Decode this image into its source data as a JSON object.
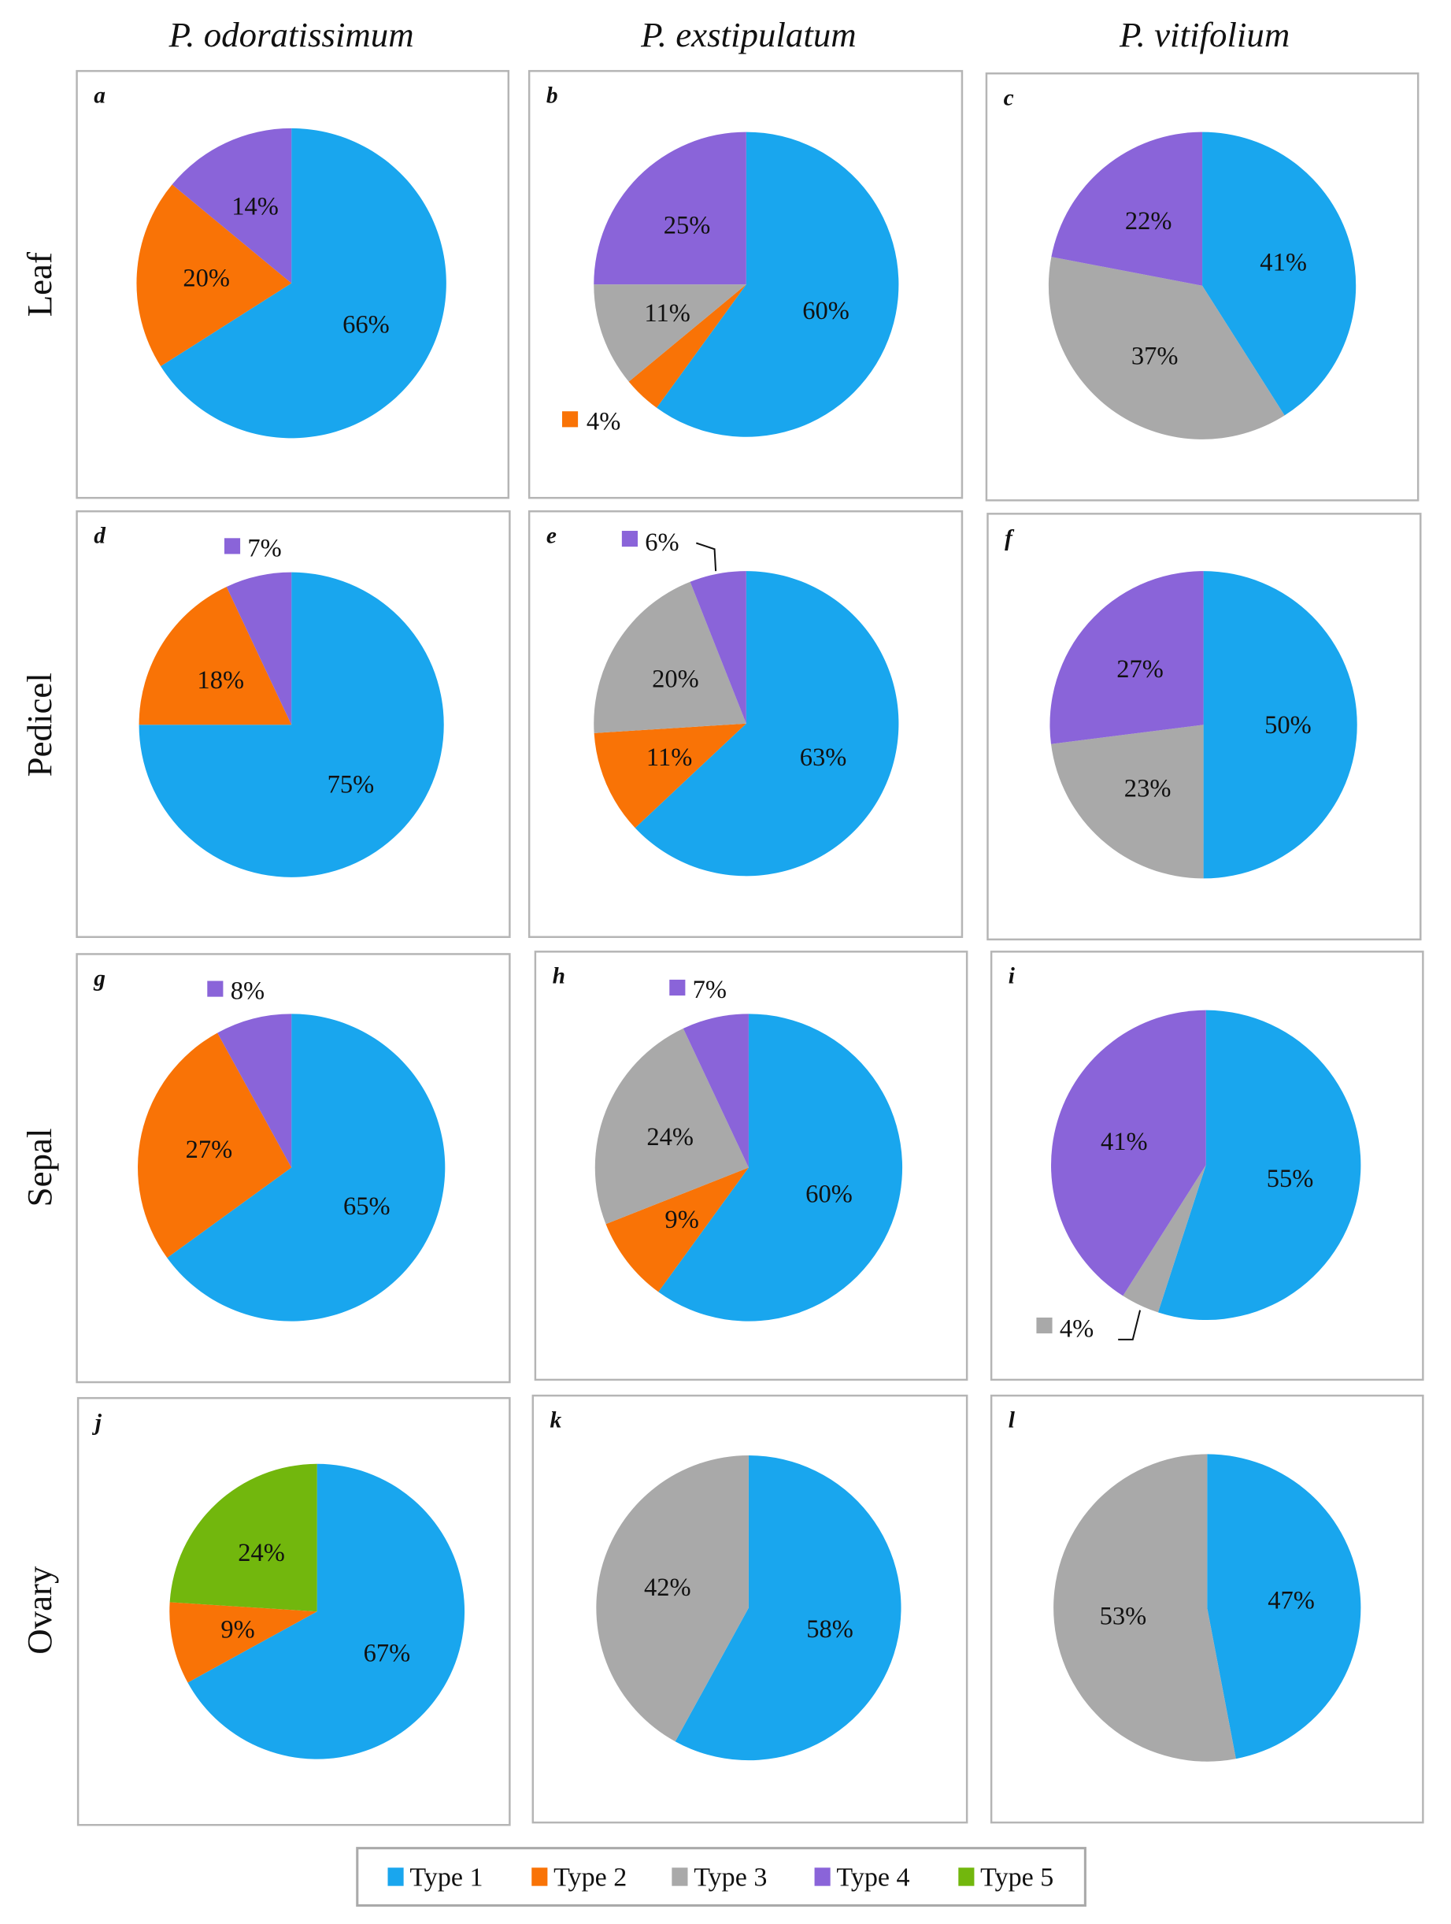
{
  "colors": {
    "Type 1": "#19a6ee",
    "Type 2": "#f97306",
    "Type 3": "#a9a9a9",
    "Type 4": "#8a64d9",
    "Type 5": "#72b70d"
  },
  "column_titles": [
    "P. odoratissimum",
    "P. exstipulatum",
    "P. vitifolium"
  ],
  "row_labels": [
    "Leaf",
    "Pedicel",
    "Sepal",
    "Ovary"
  ],
  "legend": {
    "position": "bottom",
    "entries": [
      "Type 1",
      "Type 2",
      "Type 3",
      "Type 4",
      "Type 5"
    ]
  },
  "chart_data": [
    {
      "type": "pie",
      "panel": "a",
      "species": "P. odoratissimum",
      "organ": "Leaf",
      "slices": [
        {
          "category": "Type 1",
          "value": 66,
          "label": "66%"
        },
        {
          "category": "Type 2",
          "value": 20,
          "label": "20%"
        },
        {
          "category": "Type 4",
          "value": 14,
          "label": "14%"
        }
      ]
    },
    {
      "type": "pie",
      "panel": "b",
      "species": "P. exstipulatum",
      "organ": "Leaf",
      "slices": [
        {
          "category": "Type 1",
          "value": 60,
          "label": "60%"
        },
        {
          "category": "Type 2",
          "value": 4,
          "label": "4%"
        },
        {
          "category": "Type 3",
          "value": 11,
          "label": "11%"
        },
        {
          "category": "Type 4",
          "value": 25,
          "label": "25%"
        }
      ]
    },
    {
      "type": "pie",
      "panel": "c",
      "species": "P. vitifolium",
      "organ": "Leaf",
      "slices": [
        {
          "category": "Type 1",
          "value": 41,
          "label": "41%"
        },
        {
          "category": "Type 3",
          "value": 37,
          "label": "37%"
        },
        {
          "category": "Type 4",
          "value": 22,
          "label": "22%"
        }
      ]
    },
    {
      "type": "pie",
      "panel": "d",
      "species": "P. odoratissimum",
      "organ": "Pedicel",
      "slices": [
        {
          "category": "Type 1",
          "value": 75,
          "label": "75%"
        },
        {
          "category": "Type 2",
          "value": 18,
          "label": "18%"
        },
        {
          "category": "Type 4",
          "value": 7,
          "label": "7%"
        }
      ]
    },
    {
      "type": "pie",
      "panel": "e",
      "species": "P. exstipulatum",
      "organ": "Pedicel",
      "slices": [
        {
          "category": "Type 1",
          "value": 63,
          "label": "63%"
        },
        {
          "category": "Type 2",
          "value": 11,
          "label": "11%"
        },
        {
          "category": "Type 3",
          "value": 20,
          "label": "20%"
        },
        {
          "category": "Type 4",
          "value": 6,
          "label": "6%"
        }
      ]
    },
    {
      "type": "pie",
      "panel": "f",
      "species": "P. vitifolium",
      "organ": "Pedicel",
      "slices": [
        {
          "category": "Type 1",
          "value": 50,
          "label": "50%"
        },
        {
          "category": "Type 3",
          "value": 23,
          "label": "23%"
        },
        {
          "category": "Type 4",
          "value": 27,
          "label": "27%"
        }
      ]
    },
    {
      "type": "pie",
      "panel": "g",
      "species": "P. odoratissimum",
      "organ": "Sepal",
      "slices": [
        {
          "category": "Type 1",
          "value": 65,
          "label": "65%"
        },
        {
          "category": "Type 2",
          "value": 27,
          "label": "27%"
        },
        {
          "category": "Type 4",
          "value": 8,
          "label": "8%"
        }
      ]
    },
    {
      "type": "pie",
      "panel": "h",
      "species": "P. exstipulatum",
      "organ": "Sepal",
      "slices": [
        {
          "category": "Type 1",
          "value": 60,
          "label": "60%"
        },
        {
          "category": "Type 2",
          "value": 9,
          "label": "9%"
        },
        {
          "category": "Type 3",
          "value": 24,
          "label": "24%"
        },
        {
          "category": "Type 4",
          "value": 7,
          "label": "7%"
        }
      ]
    },
    {
      "type": "pie",
      "panel": "i",
      "species": "P. vitifolium",
      "organ": "Sepal",
      "slices": [
        {
          "category": "Type 1",
          "value": 55,
          "label": "55%"
        },
        {
          "category": "Type 3",
          "value": 4,
          "label": "4%"
        },
        {
          "category": "Type 4",
          "value": 41,
          "label": "41%"
        }
      ]
    },
    {
      "type": "pie",
      "panel": "j",
      "species": "P. odoratissimum",
      "organ": "Ovary",
      "slices": [
        {
          "category": "Type 1",
          "value": 67,
          "label": "67%"
        },
        {
          "category": "Type 2",
          "value": 9,
          "label": "9%"
        },
        {
          "category": "Type 5",
          "value": 24,
          "label": "24%"
        }
      ]
    },
    {
      "type": "pie",
      "panel": "k",
      "species": "P. exstipulatum",
      "organ": "Ovary",
      "slices": [
        {
          "category": "Type 1",
          "value": 58,
          "label": "58%"
        },
        {
          "category": "Type 3",
          "value": 42,
          "label": "42%"
        }
      ]
    },
    {
      "type": "pie",
      "panel": "l",
      "species": "P. vitifolium",
      "organ": "Ovary",
      "slices": [
        {
          "category": "Type 1",
          "value": 47,
          "label": "47%"
        },
        {
          "category": "Type 3",
          "value": 53,
          "label": "53%"
        }
      ]
    }
  ]
}
